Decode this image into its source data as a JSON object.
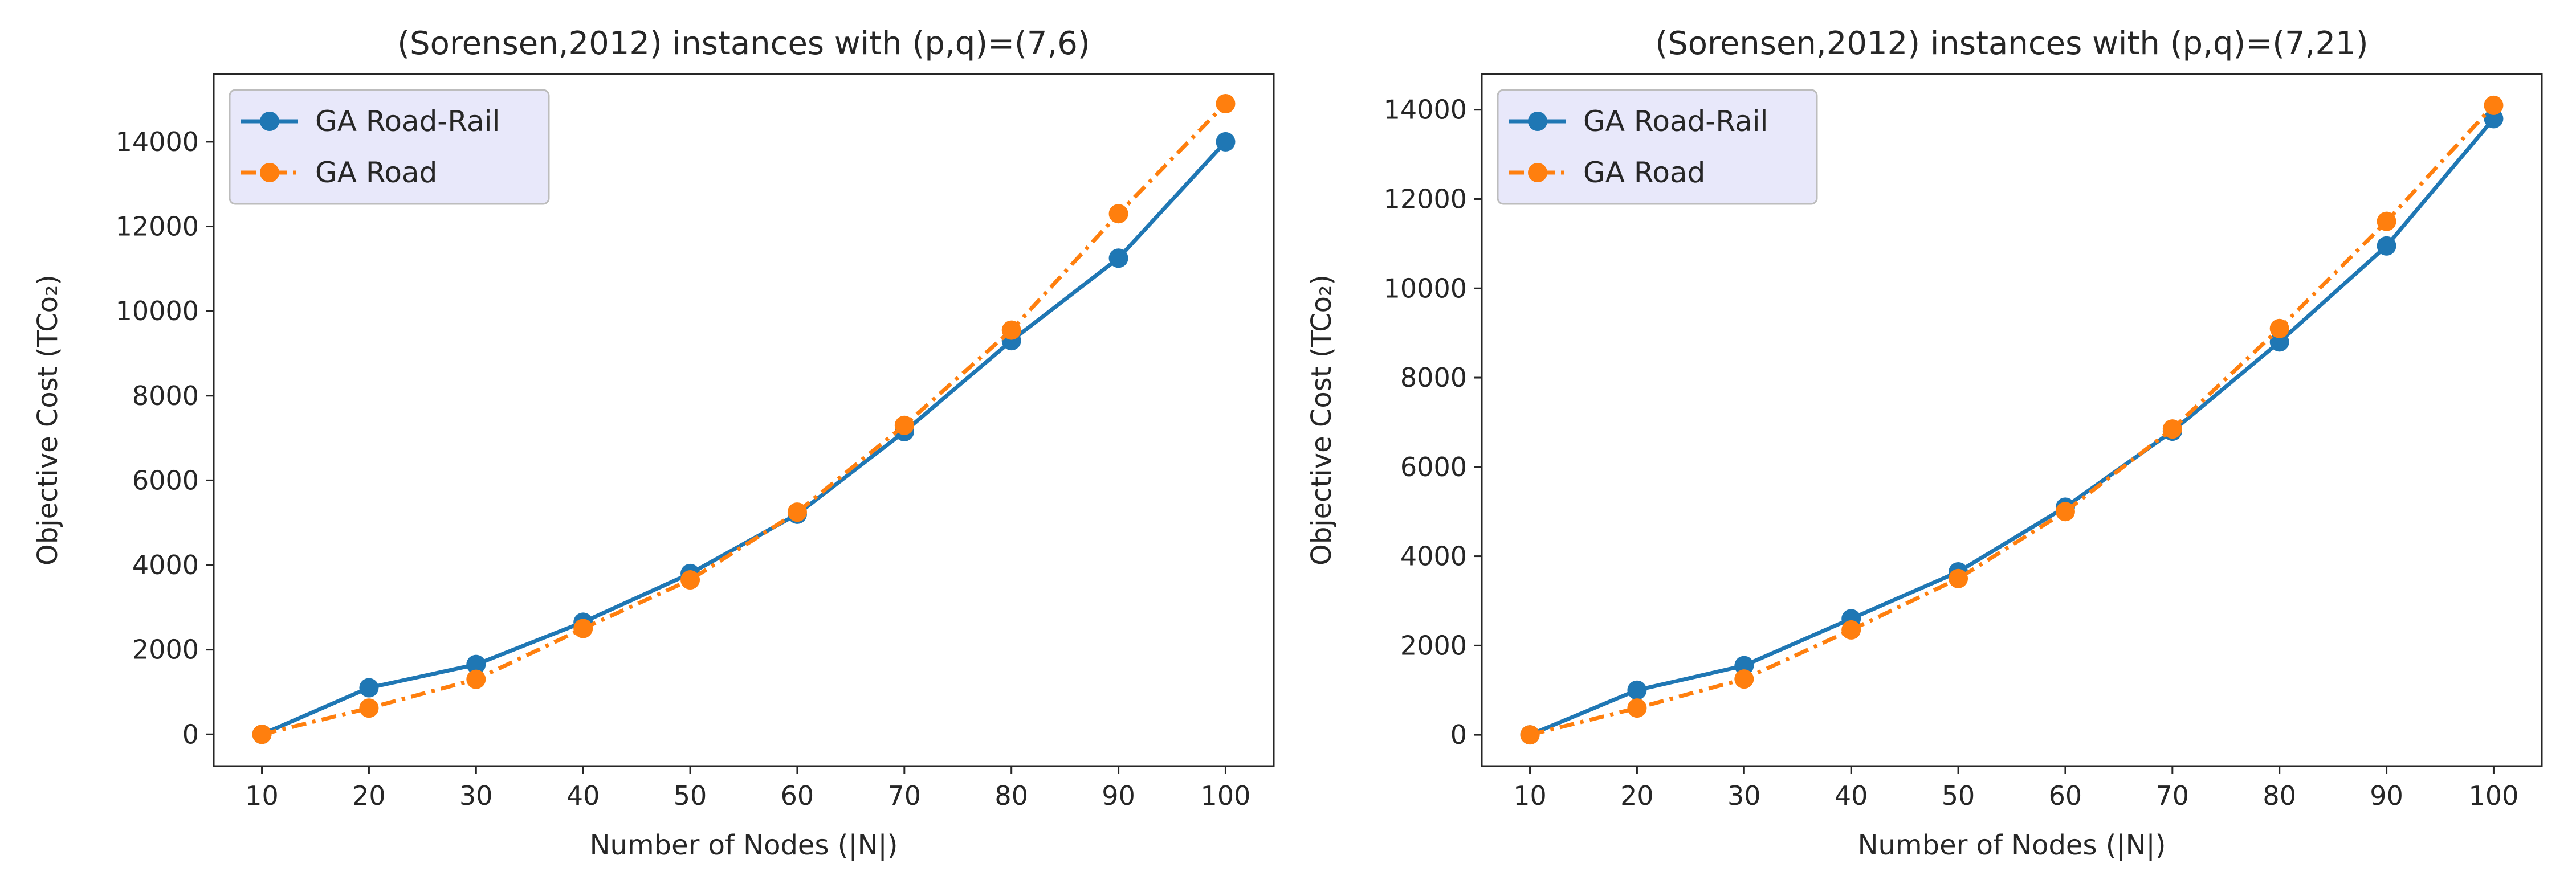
{
  "chart_data": [
    {
      "type": "line",
      "title": "(Sorensen,2012) instances with (p,q)=(7,6)",
      "xlabel": "Number of Nodes (|N|)",
      "ylabel": "Objective Cost (TCo₂)",
      "x": [
        10,
        20,
        30,
        40,
        50,
        60,
        70,
        80,
        90,
        100
      ],
      "xticks": [
        "10",
        "20",
        "30",
        "40",
        "50",
        "60",
        "70",
        "80",
        "90",
        "100"
      ],
      "yticks": [
        0,
        2000,
        4000,
        6000,
        8000,
        10000,
        12000,
        14000
      ],
      "ytick_labels": [
        "0",
        "2000",
        "4000",
        "6000",
        "8000",
        "10000",
        "12000",
        "14000"
      ],
      "xlim": [
        5.5,
        104.5
      ],
      "ylim": [
        -750,
        15600
      ],
      "legend_position": "top-left",
      "series": [
        {
          "name": "GA Road-Rail",
          "color": "#1f77b4",
          "linestyle": "solid",
          "marker": "circle",
          "values": [
            0,
            1100,
            1650,
            2650,
            3800,
            5200,
            7150,
            9300,
            11250,
            14000
          ]
        },
        {
          "name": "GA Road",
          "color": "#ff7f0e",
          "linestyle": "dashdot",
          "marker": "circle",
          "values": [
            0,
            620,
            1300,
            2500,
            3650,
            5250,
            7300,
            9550,
            12300,
            14900
          ]
        }
      ]
    },
    {
      "type": "line",
      "title": "(Sorensen,2012) instances with (p,q)=(7,21)",
      "xlabel": "Number of Nodes (|N|)",
      "ylabel": "Objective Cost (TCo₂)",
      "x": [
        10,
        20,
        30,
        40,
        50,
        60,
        70,
        80,
        90,
        100
      ],
      "xticks": [
        "10",
        "20",
        "30",
        "40",
        "50",
        "60",
        "70",
        "80",
        "90",
        "100"
      ],
      "yticks": [
        0,
        2000,
        4000,
        6000,
        8000,
        10000,
        12000,
        14000
      ],
      "ytick_labels": [
        "0",
        "2000",
        "4000",
        "6000",
        "8000",
        "10000",
        "12000",
        "14000"
      ],
      "xlim": [
        5.5,
        104.5
      ],
      "ylim": [
        -700,
        14800
      ],
      "legend_position": "top-left",
      "series": [
        {
          "name": "GA Road-Rail",
          "color": "#1f77b4",
          "linestyle": "solid",
          "marker": "circle",
          "values": [
            0,
            1000,
            1550,
            2600,
            3650,
            5100,
            6800,
            8800,
            10950,
            13800
          ]
        },
        {
          "name": "GA Road",
          "color": "#ff7f0e",
          "linestyle": "dashdot",
          "marker": "circle",
          "values": [
            0,
            600,
            1250,
            2350,
            3500,
            5000,
            6850,
            9100,
            11500,
            14100
          ]
        }
      ]
    }
  ]
}
